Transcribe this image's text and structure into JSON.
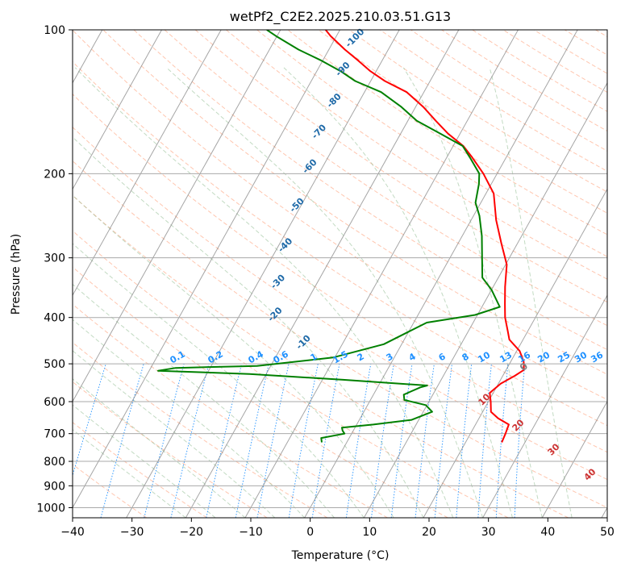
{
  "chart_data": {
    "type": "line",
    "title": "wetPf2_C2E2.2025.210.03.51.G13",
    "xlabel": "Temperature (°C)",
    "ylabel": "Pressure (hPa)",
    "xlim": [
      -40,
      50
    ],
    "ylim": [
      1050,
      100
    ],
    "y_scale": "log",
    "x_ticks": [
      "−40",
      "−30",
      "−20",
      "−10",
      "0",
      "10",
      "20",
      "30",
      "40",
      "50"
    ],
    "y_ticks": [
      "100",
      "200",
      "300",
      "400",
      "500",
      "600",
      "700",
      "800",
      "900",
      "1000"
    ],
    "grid": true,
    "skew": "skew-T log-P",
    "series": [
      {
        "color": "#ff0000",
        "points": [
          [
            26.1,
            730
          ],
          [
            25.9,
            700
          ],
          [
            25.6,
            670
          ],
          [
            23.2,
            650
          ],
          [
            21.4,
            630
          ],
          [
            20.4,
            600
          ],
          [
            19.4,
            575
          ],
          [
            20.4,
            550
          ],
          [
            22.0,
            530
          ],
          [
            23.0,
            515
          ],
          [
            22.2,
            495
          ],
          [
            20.5,
            470
          ],
          [
            17.7,
            445
          ],
          [
            16.5,
            425
          ],
          [
            14.9,
            400
          ],
          [
            13.6,
            375
          ],
          [
            12.0,
            345
          ],
          [
            10.2,
            310
          ],
          [
            7.3,
            280
          ],
          [
            4.2,
            250
          ],
          [
            1.3,
            220
          ],
          [
            -2.3,
            200
          ],
          [
            -5.7,
            185
          ],
          [
            -8.3,
            175
          ],
          [
            -12.0,
            165
          ],
          [
            -15.3,
            155
          ],
          [
            -18.7,
            145
          ],
          [
            -22.9,
            135
          ],
          [
            -27.6,
            128
          ],
          [
            -31.0,
            122
          ],
          [
            -34.0,
            116
          ],
          [
            -37.3,
            110
          ],
          [
            -41.0,
            103
          ],
          [
            -42.4,
            100
          ]
        ]
      },
      {
        "color": "#008000",
        "points": [
          [
            -4.2,
            730
          ],
          [
            -4.7,
            715
          ],
          [
            -1.2,
            700
          ],
          [
            -1.8,
            690
          ],
          [
            -2.2,
            680
          ],
          [
            2.8,
            670
          ],
          [
            8.8,
            655
          ],
          [
            11.5,
            630
          ],
          [
            9.8,
            610
          ],
          [
            5.7,
            595
          ],
          [
            5.1,
            580
          ],
          [
            7.2,
            560
          ],
          [
            8.2,
            555
          ],
          [
            -6.5,
            540
          ],
          [
            -22.8,
            525
          ],
          [
            -38.5,
            517
          ],
          [
            -35.8,
            510
          ],
          [
            -22.3,
            505
          ],
          [
            -10.3,
            485
          ],
          [
            -3.0,
            455
          ],
          [
            -0.2,
            430
          ],
          [
            2.2,
            410
          ],
          [
            9.6,
            395
          ],
          [
            13.0,
            380
          ],
          [
            10.0,
            350
          ],
          [
            7.3,
            330
          ],
          [
            5.4,
            300
          ],
          [
            3.3,
            270
          ],
          [
            1.0,
            245
          ],
          [
            -0.9,
            230
          ],
          [
            -2.1,
            210
          ],
          [
            -3.0,
            200
          ],
          [
            -6.1,
            185
          ],
          [
            -8.4,
            175
          ],
          [
            -13.3,
            165
          ],
          [
            -18.5,
            155
          ],
          [
            -22.4,
            145
          ],
          [
            -27.2,
            135
          ],
          [
            -32.6,
            128
          ],
          [
            -36.0,
            122
          ],
          [
            -40.2,
            116
          ],
          [
            -45.1,
            110
          ],
          [
            -50.2,
            103
          ],
          [
            -52.3,
            100
          ]
        ]
      }
    ],
    "skew_factor": 45,
    "dry_adiabat_labels": [
      "-100",
      "-90",
      "-80",
      "-70",
      "-60",
      "-50",
      "-40",
      "-30",
      "-20",
      "-10",
      "0"
    ],
    "moist_adiabat_labels": [
      "10",
      "20",
      "30",
      "40"
    ],
    "mixing_ratio_labels": [
      "0.1",
      "0.2",
      "0.4",
      "0.6",
      "1",
      "1.5",
      "2",
      "3",
      "4",
      "6",
      "8",
      "10",
      "13",
      "16",
      "20",
      "25",
      "30",
      "36"
    ]
  },
  "colors": {
    "temperature": "#ff0000",
    "dewpoint": "#008000",
    "isotherm": "#808080",
    "isobar": "#a9a9a9",
    "dry_adiabat": "#ffa07a",
    "moist_adiabat": "#8fbc8f",
    "mixing_ratio": "#1e90ff"
  }
}
